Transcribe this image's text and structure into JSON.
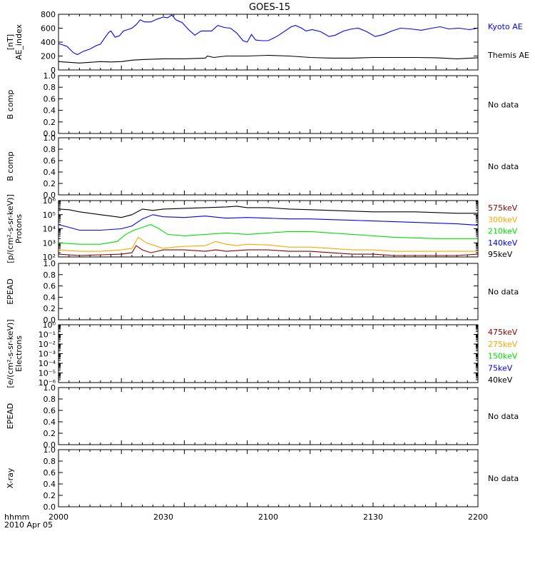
{
  "title": "GOES-15",
  "time_axis": {
    "ticks": [
      "2000",
      "2030",
      "2100",
      "2130",
      "2200"
    ],
    "corner_label": "hhmm",
    "date_label": "2010 Apr 05"
  },
  "colors": {
    "black": "#000000",
    "blue": "#0000ff",
    "green": "#00e000",
    "orange": "#ffa500",
    "darkred": "#8b0000"
  },
  "chart_data": [
    {
      "type": "line",
      "ylabel_lines": [
        "AE_index",
        "[nT]"
      ],
      "ylim": [
        0,
        800
      ],
      "yticks": [
        "0",
        "200",
        "400",
        "600",
        "800"
      ],
      "x_minutes": [
        0,
        120
      ],
      "series": [
        {
          "name": "Kyoto AE",
          "color": "#0000ff",
          "points": [
            [
              0,
              380
            ],
            [
              4,
              340
            ],
            [
              7,
              250
            ],
            [
              9,
              220
            ],
            [
              12,
              270
            ],
            [
              15,
              300
            ],
            [
              18,
              350
            ],
            [
              20,
              370
            ],
            [
              22,
              460
            ],
            [
              24,
              540
            ],
            [
              25,
              560
            ],
            [
              27,
              470
            ],
            [
              29,
              490
            ],
            [
              31,
              560
            ],
            [
              33,
              580
            ],
            [
              35,
              600
            ],
            [
              37,
              650
            ],
            [
              39,
              720
            ],
            [
              41,
              690
            ],
            [
              44,
              690
            ],
            [
              47,
              730
            ],
            [
              50,
              760
            ],
            [
              52,
              750
            ],
            [
              54,
              790
            ],
            [
              56,
              720
            ],
            [
              59,
              680
            ],
            [
              62,
              580
            ],
            [
              65,
              500
            ],
            [
              68,
              560
            ],
            [
              71,
              560
            ],
            [
              73,
              560
            ],
            [
              76,
              640
            ],
            [
              79,
              610
            ],
            [
              82,
              600
            ],
            [
              85,
              530
            ],
            [
              88,
              420
            ],
            [
              90,
              400
            ],
            [
              92,
              510
            ],
            [
              94,
              430
            ],
            [
              97,
              420
            ],
            [
              100,
              420
            ],
            [
              104,
              480
            ],
            [
              108,
              560
            ],
            [
              111,
              620
            ],
            [
              113,
              640
            ],
            [
              116,
              600
            ],
            [
              118,
              560
            ],
            [
              121,
              580
            ],
            [
              125,
              550
            ],
            [
              129,
              480
            ],
            [
              132,
              500
            ],
            [
              136,
              560
            ],
            [
              140,
              590
            ],
            [
              143,
              600
            ],
            [
              147,
              550
            ],
            [
              151,
              480
            ],
            [
              155,
              510
            ],
            [
              159,
              560
            ],
            [
              163,
              600
            ],
            [
              168,
              590
            ],
            [
              173,
              570
            ],
            [
              178,
              600
            ],
            [
              182,
              620
            ],
            [
              186,
              590
            ],
            [
              191,
              600
            ],
            [
              196,
              580
            ],
            [
              200,
              600
            ]
          ]
        },
        {
          "name": "Themis AE",
          "color": "#000000",
          "points": [
            [
              0,
              120
            ],
            [
              5,
              110
            ],
            [
              10,
              100
            ],
            [
              15,
              110
            ],
            [
              20,
              120
            ],
            [
              25,
              115
            ],
            [
              30,
              120
            ],
            [
              35,
              140
            ],
            [
              40,
              150
            ],
            [
              50,
              160
            ],
            [
              60,
              160
            ],
            [
              70,
              170
            ],
            [
              71,
              200
            ],
            [
              74,
              180
            ],
            [
              80,
              200
            ],
            [
              90,
              200
            ],
            [
              100,
              210
            ],
            [
              110,
              200
            ],
            [
              120,
              180
            ],
            [
              130,
              170
            ],
            [
              135,
              170
            ],
            [
              140,
              170
            ],
            [
              150,
              180
            ],
            [
              160,
              180
            ],
            [
              170,
              180
            ],
            [
              180,
              175
            ],
            [
              190,
              160
            ],
            [
              200,
              175
            ]
          ]
        }
      ]
    },
    {
      "type": "line",
      "ylabel_lines": [
        "B comp"
      ],
      "ylim": [
        0,
        1
      ],
      "yticks": [
        "0.0",
        "0.2",
        "0.4",
        "0.6",
        "0.8",
        "1.0"
      ],
      "note": "No data",
      "series": []
    },
    {
      "type": "line",
      "ylabel_lines": [
        "B comp"
      ],
      "ylim": [
        0,
        1
      ],
      "yticks": [
        "0.0",
        "0.2",
        "0.4",
        "0.6",
        "0.8",
        "1.0"
      ],
      "note": "No data",
      "series": []
    },
    {
      "type": "line",
      "scale": "log",
      "ylabel_lines": [
        "Protons",
        "[p/(cm²-s-sr-keV)]"
      ],
      "ylim_exp": [
        2,
        6
      ],
      "yticks": [
        "10²",
        "10³",
        "10⁴",
        "10⁵",
        "10⁶"
      ],
      "series": [
        {
          "name": "575keV",
          "color": "#8b0000",
          "points": [
            [
              0,
              2.2
            ],
            [
              10,
              2.1
            ],
            [
              20,
              2.15
            ],
            [
              30,
              2.2
            ],
            [
              35,
              2.3
            ],
            [
              37,
              2.8
            ],
            [
              40,
              2.5
            ],
            [
              44,
              2.3
            ],
            [
              50,
              2.5
            ],
            [
              60,
              2.5
            ],
            [
              70,
              2.4
            ],
            [
              75,
              2.5
            ],
            [
              80,
              2.4
            ],
            [
              90,
              2.5
            ],
            [
              100,
              2.5
            ],
            [
              110,
              2.4
            ],
            [
              120,
              2.4
            ],
            [
              130,
              2.3
            ],
            [
              140,
              2.2
            ],
            [
              150,
              2.2
            ],
            [
              160,
              2.1
            ],
            [
              170,
              2.1
            ],
            [
              180,
              2.1
            ],
            [
              190,
              2.1
            ],
            [
              200,
              2.2
            ]
          ]
        },
        {
          "name": "300keV",
          "color": "#ffa500",
          "points": [
            [
              0,
              2.5
            ],
            [
              10,
              2.4
            ],
            [
              20,
              2.4
            ],
            [
              30,
              2.5
            ],
            [
              35,
              2.6
            ],
            [
              38,
              3.4
            ],
            [
              42,
              3.0
            ],
            [
              46,
              2.8
            ],
            [
              50,
              2.6
            ],
            [
              55,
              2.7
            ],
            [
              60,
              2.75
            ],
            [
              70,
              2.8
            ],
            [
              75,
              3.1
            ],
            [
              80,
              2.9
            ],
            [
              85,
              2.8
            ],
            [
              90,
              2.9
            ],
            [
              100,
              2.85
            ],
            [
              110,
              2.7
            ],
            [
              120,
              2.7
            ],
            [
              130,
              2.6
            ],
            [
              140,
              2.5
            ],
            [
              150,
              2.5
            ],
            [
              160,
              2.4
            ],
            [
              170,
              2.4
            ],
            [
              180,
              2.4
            ],
            [
              190,
              2.4
            ],
            [
              200,
              2.4
            ]
          ]
        },
        {
          "name": "210keV",
          "color": "#00e000",
          "points": [
            [
              0,
              3.0
            ],
            [
              10,
              2.9
            ],
            [
              20,
              2.9
            ],
            [
              28,
              3.1
            ],
            [
              32,
              3.6
            ],
            [
              36,
              3.9
            ],
            [
              40,
              4.1
            ],
            [
              44,
              4.3
            ],
            [
              48,
              4.0
            ],
            [
              52,
              3.6
            ],
            [
              60,
              3.5
            ],
            [
              70,
              3.6
            ],
            [
              80,
              3.7
            ],
            [
              90,
              3.6
            ],
            [
              100,
              3.7
            ],
            [
              110,
              3.8
            ],
            [
              120,
              3.8
            ],
            [
              130,
              3.7
            ],
            [
              140,
              3.6
            ],
            [
              150,
              3.5
            ],
            [
              160,
              3.4
            ],
            [
              170,
              3.35
            ],
            [
              180,
              3.3
            ],
            [
              190,
              3.3
            ],
            [
              200,
              3.3
            ]
          ]
        },
        {
          "name": "140keV",
          "color": "#0000ff",
          "points": [
            [
              0,
              4.3
            ],
            [
              5,
              4.1
            ],
            [
              10,
              3.9
            ],
            [
              20,
              3.9
            ],
            [
              30,
              4.0
            ],
            [
              35,
              4.2
            ],
            [
              40,
              4.7
            ],
            [
              45,
              5.0
            ],
            [
              50,
              4.85
            ],
            [
              60,
              4.8
            ],
            [
              70,
              4.9
            ],
            [
              80,
              4.75
            ],
            [
              90,
              4.8
            ],
            [
              100,
              4.75
            ],
            [
              110,
              4.7
            ],
            [
              120,
              4.7
            ],
            [
              130,
              4.65
            ],
            [
              140,
              4.6
            ],
            [
              150,
              4.55
            ],
            [
              160,
              4.5
            ],
            [
              170,
              4.45
            ],
            [
              180,
              4.4
            ],
            [
              190,
              4.35
            ],
            [
              200,
              4.25
            ]
          ]
        },
        {
          "name": "95keV",
          "color": "#000000",
          "points": [
            [
              0,
              5.4
            ],
            [
              5,
              5.35
            ],
            [
              10,
              5.2
            ],
            [
              15,
              5.1
            ],
            [
              20,
              5.0
            ],
            [
              25,
              4.9
            ],
            [
              30,
              4.8
            ],
            [
              35,
              5.0
            ],
            [
              40,
              5.4
            ],
            [
              45,
              5.3
            ],
            [
              50,
              5.4
            ],
            [
              60,
              5.45
            ],
            [
              70,
              5.5
            ],
            [
              80,
              5.55
            ],
            [
              85,
              5.6
            ],
            [
              90,
              5.5
            ],
            [
              100,
              5.5
            ],
            [
              110,
              5.4
            ],
            [
              120,
              5.35
            ],
            [
              130,
              5.3
            ],
            [
              140,
              5.25
            ],
            [
              150,
              5.2
            ],
            [
              160,
              5.2
            ],
            [
              170,
              5.2
            ],
            [
              180,
              5.15
            ],
            [
              190,
              5.1
            ],
            [
              200,
              5.1
            ]
          ]
        }
      ]
    },
    {
      "type": "line",
      "ylabel_lines": [
        "EPEAD"
      ],
      "ylim": [
        0,
        1
      ],
      "yticks": [
        "0.0",
        "0.2",
        "0.4",
        "0.6",
        "0.8",
        "1.0"
      ],
      "note": "No data",
      "series": []
    },
    {
      "type": "line",
      "scale": "log",
      "ylabel_lines": [
        "Electrons",
        "[e/(cm²-s-sr-keV)]"
      ],
      "ylim_exp": [
        -6,
        0
      ],
      "yticks": [
        "10⁻⁶",
        "10⁻⁵",
        "10⁻⁴",
        "10⁻³",
        "10⁻²",
        "10⁻¹",
        "10⁰"
      ],
      "legend": [
        {
          "name": "475keV",
          "color": "#8b0000"
        },
        {
          "name": "275keV",
          "color": "#ffa500"
        },
        {
          "name": "150keV",
          "color": "#00e000"
        },
        {
          "name": "75keV",
          "color": "#0000ff"
        },
        {
          "name": "40keV",
          "color": "#000000"
        }
      ],
      "series": []
    },
    {
      "type": "line",
      "ylabel_lines": [
        "EPEAD"
      ],
      "ylim": [
        0,
        1
      ],
      "yticks": [
        "0.0",
        "0.2",
        "0.4",
        "0.6",
        "0.8",
        "1.0"
      ],
      "note": "No data",
      "series": []
    },
    {
      "type": "line",
      "ylabel_lines": [
        "X-ray"
      ],
      "ylim": [
        0,
        1
      ],
      "yticks": [
        "0.0",
        "0.2",
        "0.4",
        "0.6",
        "0.8",
        "1.0"
      ],
      "note": "No data",
      "series": []
    }
  ]
}
